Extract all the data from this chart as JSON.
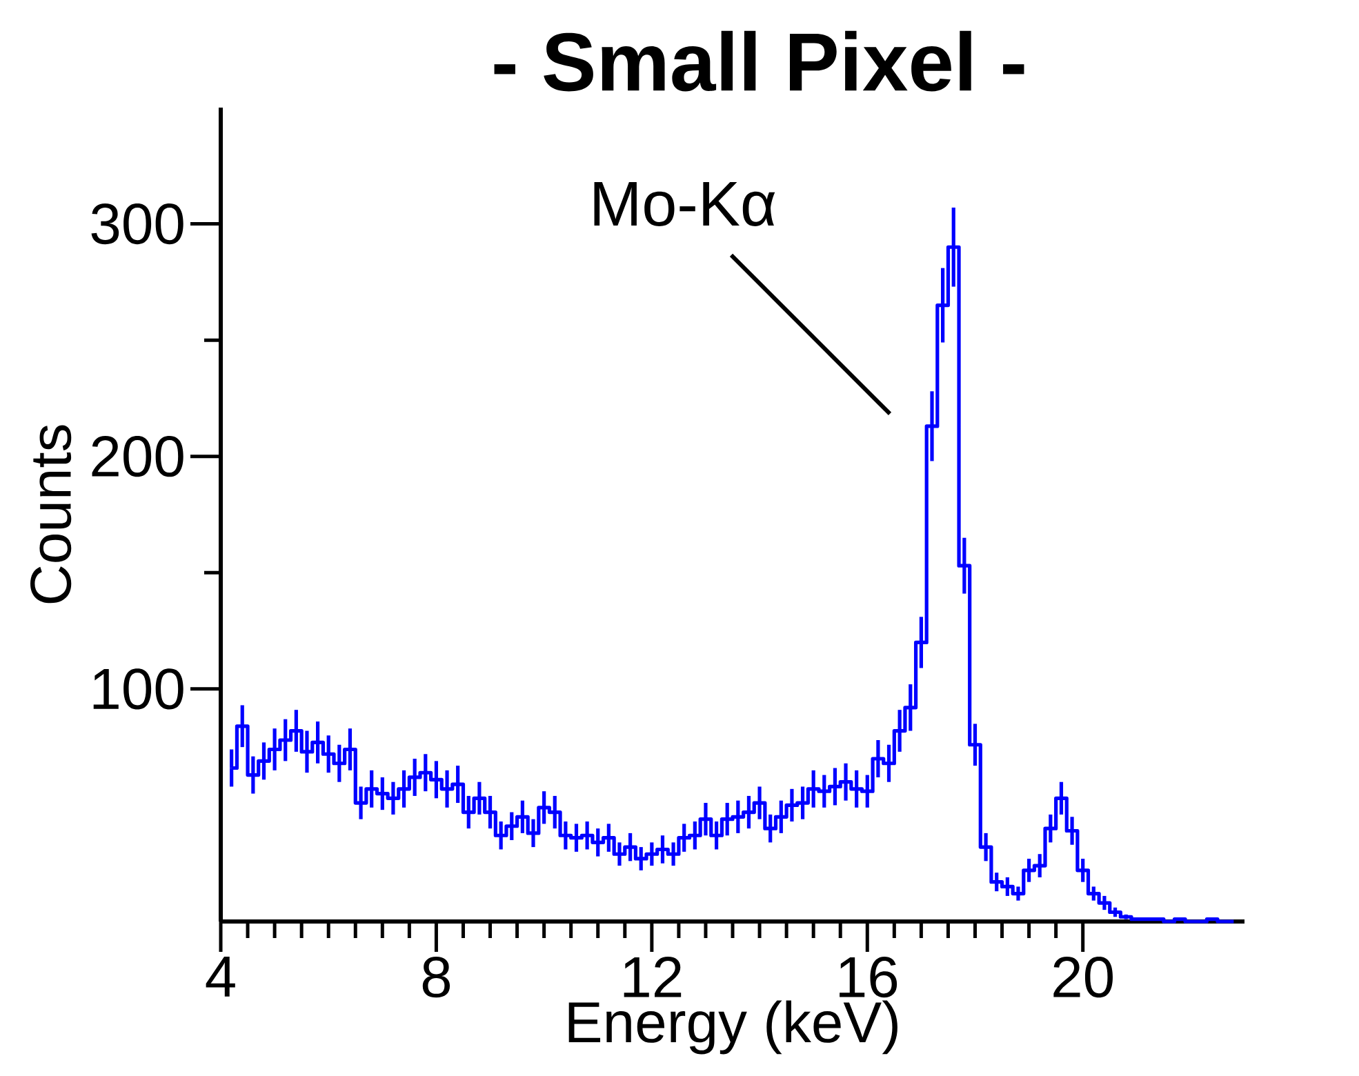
{
  "chart_data": {
    "type": "step",
    "title": "- Small Pixel -",
    "xlabel": "Energy (keV)",
    "ylabel": "Counts",
    "color": "#0000ff",
    "x": [
      4.2,
      4.4,
      4.6,
      4.8,
      5.0,
      5.2,
      5.4,
      5.6,
      5.8,
      6.0,
      6.2,
      6.4,
      6.6,
      6.8,
      7.0,
      7.2,
      7.4,
      7.6,
      7.8,
      8.0,
      8.2,
      8.4,
      8.6,
      8.8,
      9.0,
      9.2,
      9.4,
      9.6,
      9.8,
      10.0,
      10.2,
      10.4,
      10.6,
      10.8,
      11.0,
      11.2,
      11.4,
      11.6,
      11.8,
      12.0,
      12.2,
      12.4,
      12.6,
      12.8,
      13.0,
      13.2,
      13.4,
      13.6,
      13.8,
      14.0,
      14.2,
      14.4,
      14.6,
      14.8,
      15.0,
      15.2,
      15.4,
      15.6,
      15.8,
      16.0,
      16.2,
      16.4,
      16.6,
      16.8,
      17.0,
      17.2,
      17.4,
      17.6,
      17.8,
      18.0,
      18.2,
      18.4,
      18.6,
      18.8,
      19.0,
      19.2,
      19.4,
      19.6,
      19.8,
      20.0,
      20.2,
      20.4,
      20.6,
      20.8,
      21.0,
      21.2,
      21.4,
      21.6,
      21.8,
      22.0,
      22.2,
      22.4,
      22.6,
      22.8
    ],
    "values": [
      66,
      84,
      63,
      69,
      74,
      78,
      82,
      73,
      77,
      72,
      68,
      74,
      51,
      57,
      55,
      53,
      57,
      62,
      64,
      61,
      57,
      59,
      47,
      53,
      47,
      37,
      41,
      45,
      38,
      49,
      47,
      37,
      36,
      37,
      34,
      36,
      29,
      32,
      27,
      29,
      31,
      29,
      36,
      37,
      44,
      37,
      44,
      45,
      47,
      51,
      40,
      45,
      50,
      51,
      57,
      56,
      58,
      60,
      57,
      56,
      70,
      68,
      82,
      92,
      120,
      213,
      265,
      290,
      153,
      76,
      32,
      17,
      15,
      12,
      22,
      24,
      40,
      53,
      39,
      22,
      12,
      8,
      4,
      2,
      1,
      1,
      1,
      0,
      1,
      0,
      0,
      1,
      0,
      0
    ],
    "errors": [
      8,
      9,
      8,
      8,
      9,
      9,
      9,
      9,
      9,
      8,
      8,
      9,
      7,
      8,
      7,
      7,
      8,
      8,
      8,
      8,
      8,
      8,
      7,
      7,
      7,
      6,
      6,
      7,
      6,
      7,
      7,
      6,
      6,
      6,
      6,
      6,
      5,
      6,
      5,
      5,
      6,
      5,
      6,
      6,
      7,
      6,
      7,
      7,
      7,
      7,
      6,
      7,
      7,
      7,
      8,
      7,
      8,
      8,
      8,
      7,
      8,
      8,
      9,
      10,
      11,
      15,
      16,
      17,
      12,
      9,
      6,
      4,
      4,
      3,
      5,
      5,
      6,
      7,
      6,
      5,
      3,
      3,
      2,
      1,
      null,
      null,
      null,
      null,
      null,
      null,
      null,
      null,
      null,
      null
    ],
    "xlim": [
      4,
      23
    ],
    "ylim": [
      0,
      350
    ],
    "xticks": [
      4,
      8,
      12,
      16,
      20
    ],
    "yticks": [
      100,
      200,
      300
    ],
    "annotations": [
      "Mo-Kα"
    ],
    "grid": false
  }
}
